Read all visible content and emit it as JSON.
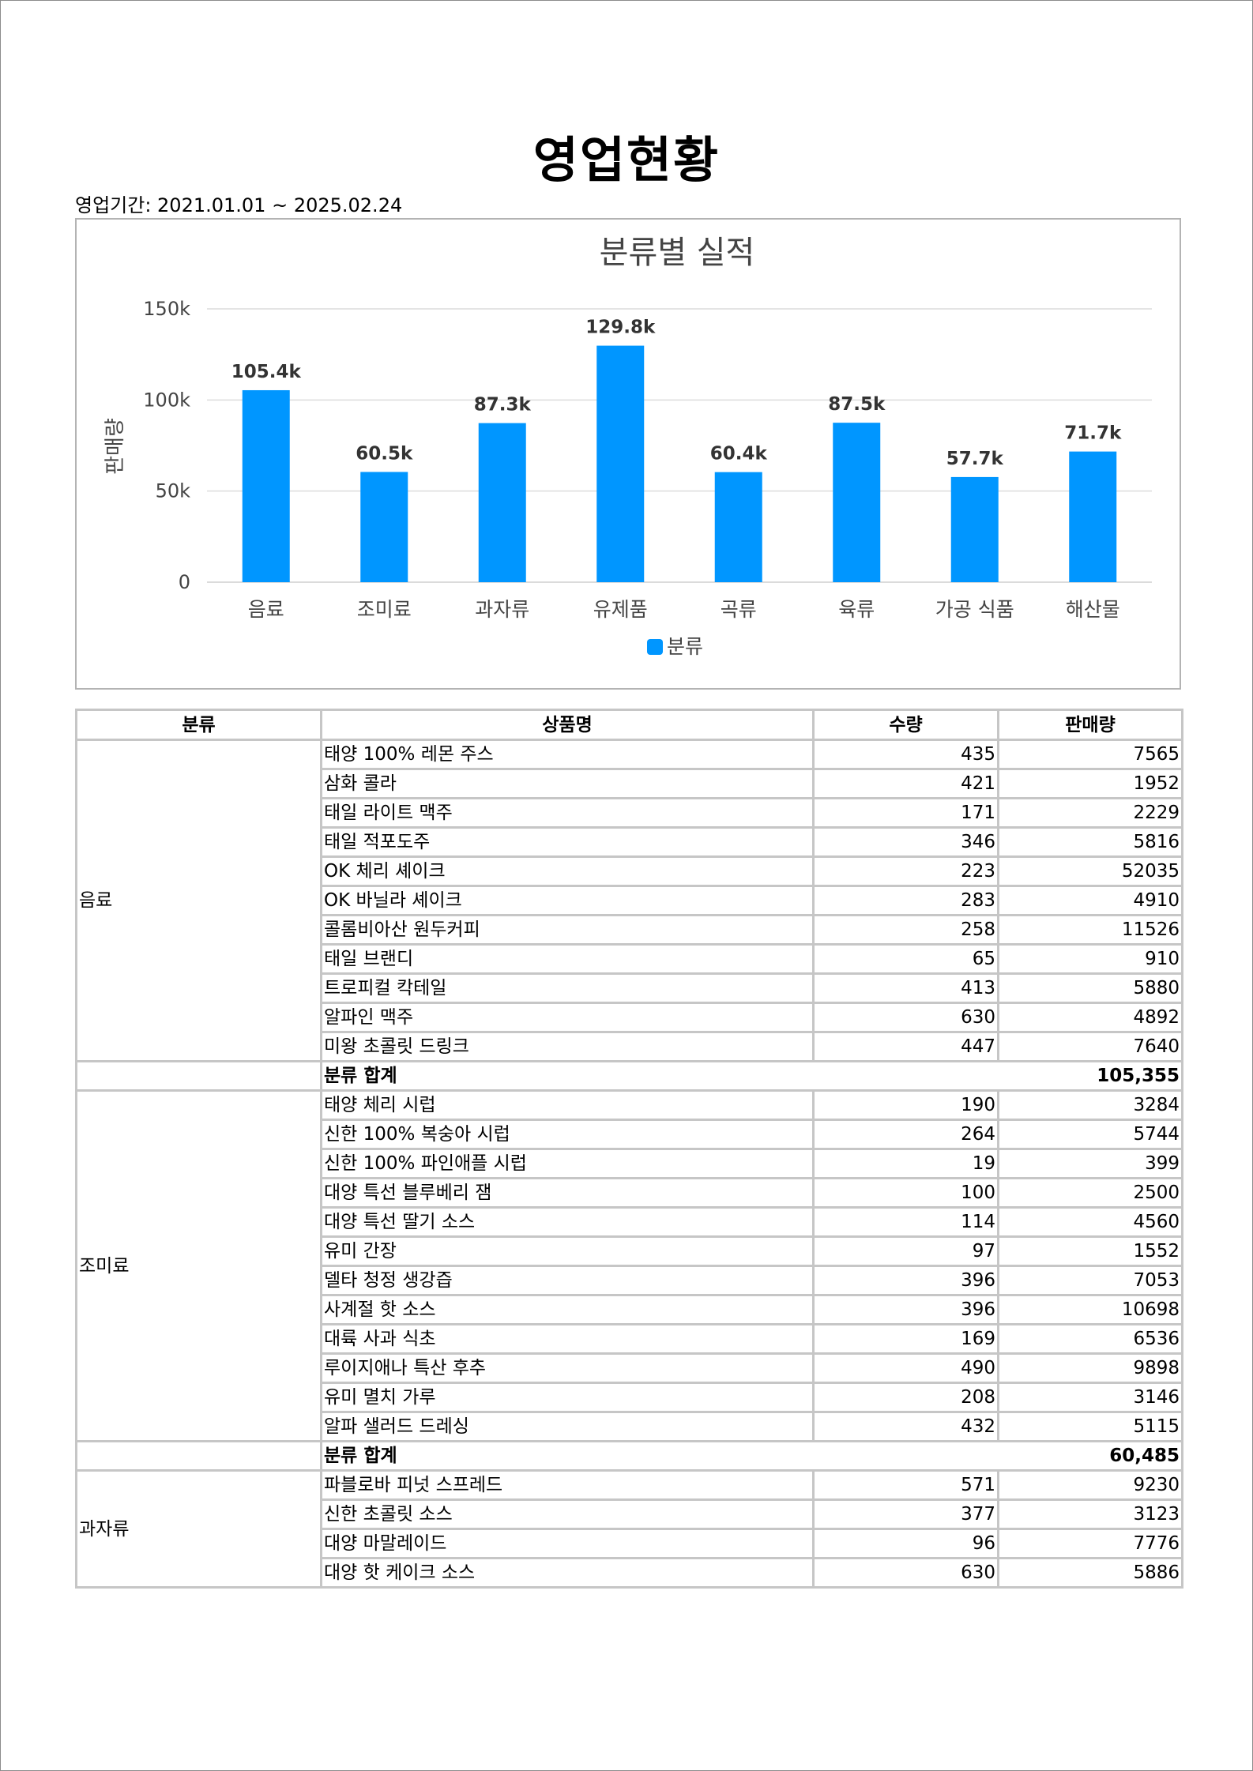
{
  "report": {
    "title": "영업현황",
    "period": "영업기간: 2021.01.01 ~ 2025.02.24"
  },
  "chart_data": {
    "type": "bar",
    "title": "분류별 실적",
    "ylabel": "판매량",
    "xlabel": "",
    "categories": [
      "음료",
      "조미료",
      "과자류",
      "유제품",
      "곡류",
      "육류",
      "가공 식품",
      "해산물"
    ],
    "series": [
      {
        "name": "분류",
        "values": [
          105355,
          60485,
          87300,
          129800,
          60400,
          87500,
          57700,
          71700
        ]
      }
    ],
    "value_labels": [
      "105.4k",
      "60.5k",
      "87.3k",
      "129.8k",
      "60.4k",
      "87.5k",
      "57.7k",
      "71.7k"
    ],
    "yticks": [
      0,
      50000,
      100000,
      150000
    ],
    "ytick_labels": [
      "0",
      "50k",
      "100k",
      "150k"
    ],
    "ylim": [
      0,
      150000
    ],
    "grid": true,
    "legend": "bottom",
    "color": "#0096FF"
  },
  "table": {
    "headers": [
      "분류",
      "상품명",
      "수량",
      "판매량"
    ],
    "subtotal_label": "분류 합계",
    "groups": [
      {
        "category": "음료",
        "rows": [
          [
            "태양 100% 레몬 주스",
            "435",
            "7565"
          ],
          [
            "삼화 콜라",
            "421",
            "1952"
          ],
          [
            "태일 라이트 맥주",
            "171",
            "2229"
          ],
          [
            "태일 적포도주",
            "346",
            "5816"
          ],
          [
            "OK 체리 셰이크",
            "223",
            "52035"
          ],
          [
            "OK 바닐라 셰이크",
            "283",
            "4910"
          ],
          [
            "콜롬비아산 원두커피",
            "258",
            "11526"
          ],
          [
            "태일 브랜디",
            "65",
            "910"
          ],
          [
            "트로피컬 칵테일",
            "413",
            "5880"
          ],
          [
            "알파인 맥주",
            "630",
            "4892"
          ],
          [
            "미왕 초콜릿 드링크",
            "447",
            "7640"
          ]
        ],
        "total": "105,355"
      },
      {
        "category": "조미료",
        "rows": [
          [
            "태양 체리 시럽",
            "190",
            "3284"
          ],
          [
            "신한 100% 복숭아 시럽",
            "264",
            "5744"
          ],
          [
            "신한 100% 파인애플 시럽",
            "19",
            "399"
          ],
          [
            "대양 특선 블루베리 잼",
            "100",
            "2500"
          ],
          [
            "대양 특선 딸기 소스",
            "114",
            "4560"
          ],
          [
            "유미 간장",
            "97",
            "1552"
          ],
          [
            "델타 청정 생강즙",
            "396",
            "7053"
          ],
          [
            "사계절 핫 소스",
            "396",
            "10698"
          ],
          [
            "대륙 사과 식초",
            "169",
            "6536"
          ],
          [
            "루이지애나 특산 후추",
            "490",
            "9898"
          ],
          [
            "유미 멸치 가루",
            "208",
            "3146"
          ],
          [
            "알파 샐러드 드레싱",
            "432",
            "5115"
          ]
        ],
        "total": "60,485"
      },
      {
        "category": "과자류",
        "rows": [
          [
            "파블로바 피넛 스프레드",
            "571",
            "9230"
          ],
          [
            "신한 초콜릿 소스",
            "377",
            "3123"
          ],
          [
            "대양 마말레이드",
            "96",
            "7776"
          ],
          [
            "대양 핫 케이크 소스",
            "630",
            "5886"
          ]
        ],
        "total": null
      }
    ]
  }
}
